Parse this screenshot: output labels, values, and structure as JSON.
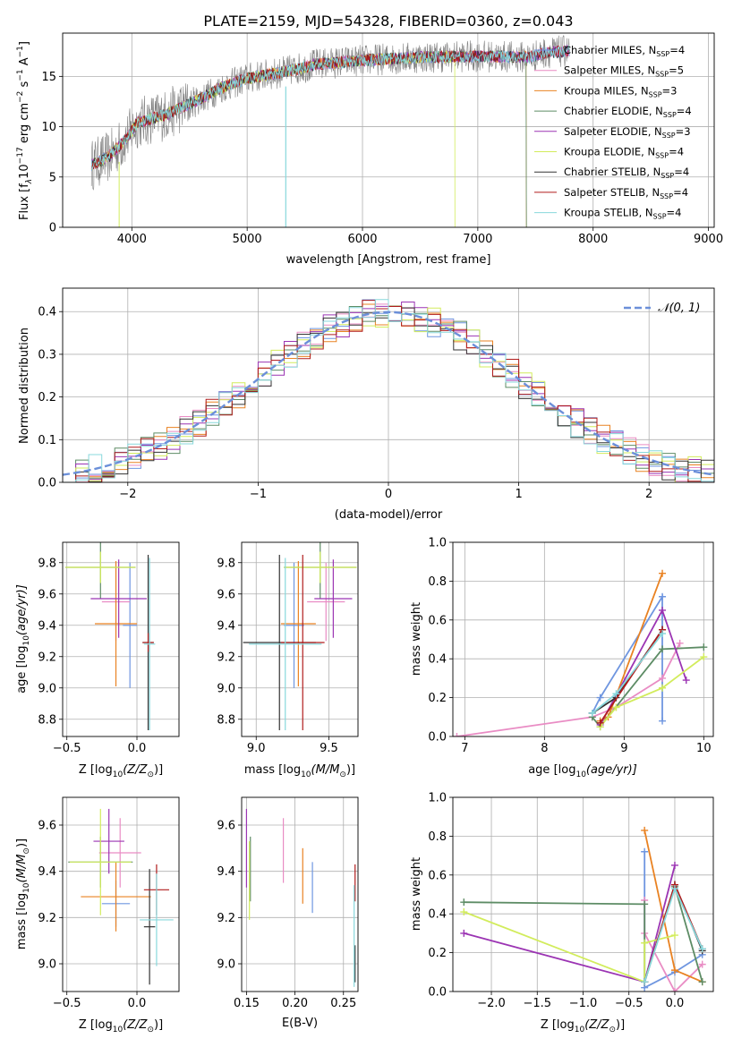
{
  "title": "PLATE=2159, MJD=54328, FIBERID=0360, z=0.043",
  "colors": {
    "chabrier_miles": "#6f96e0",
    "salpeter_miles": "#e98cc4",
    "kroupa_miles": "#e98222",
    "chabrier_elodie": "#5d8c65",
    "salpeter_elodie": "#9b34b3",
    "kroupa_elodie": "#d2ec5c",
    "chabrier_stelib": "#333333",
    "salpeter_stelib": "#b01c1c",
    "kroupa_stelib": "#88d8dc",
    "data": "#808080",
    "normal": "#6b8fd9"
  },
  "chart_data": [
    {
      "id": "spectrum",
      "type": "line",
      "xlabel": "wavelength [Angstrom, rest frame]",
      "ylabel": "Flux [f",
      "ylabel_sub": "λ",
      "ylabel_mid": "10",
      "ylabel_sup1": "−17",
      "ylabel_mid2": " erg cm",
      "ylabel_sup2": "−2",
      "ylabel_mid3": " s",
      "ylabel_sup3": "−1",
      "ylabel_mid4": " A",
      "ylabel_sup4": "−1",
      "ylabel_end": "]",
      "xlim": [
        3400,
        9050
      ],
      "ylim": [
        0,
        19.3
      ],
      "xticks": [
        4000,
        5000,
        6000,
        7000,
        8000,
        9000
      ],
      "yticks": [
        0,
        5,
        10,
        15
      ],
      "continuum": [
        [
          3650,
          6.2
        ],
        [
          3800,
          7.0
        ],
        [
          3950,
          8.8
        ],
        [
          4050,
          10.4
        ],
        [
          4300,
          11.2
        ],
        [
          4600,
          12.8
        ],
        [
          4800,
          14.0
        ],
        [
          5000,
          14.8
        ],
        [
          5300,
          15.4
        ],
        [
          5600,
          16.2
        ],
        [
          6000,
          16.6
        ],
        [
          6500,
          16.9
        ],
        [
          7000,
          17.0
        ],
        [
          7450,
          16.9
        ],
        [
          7600,
          17.4
        ],
        [
          7800,
          17.5
        ]
      ],
      "legend": [
        {
          "label": "Chabrier MILES, N",
          "sub": "SSP",
          "tail": "=4",
          "color_key": "chabrier_miles"
        },
        {
          "label": "Salpeter MILES, N",
          "sub": "SSP",
          "tail": "=5",
          "color_key": "salpeter_miles"
        },
        {
          "label": "Kroupa MILES, N",
          "sub": "SSP",
          "tail": "=3",
          "color_key": "kroupa_miles"
        },
        {
          "label": "Chabrier ELODIE, N",
          "sub": "SSP",
          "tail": "=4",
          "color_key": "chabrier_elodie"
        },
        {
          "label": "Salpeter ELODIE, N",
          "sub": "SSP",
          "tail": "=3",
          "color_key": "salpeter_elodie"
        },
        {
          "label": "Kroupa ELODIE, N",
          "sub": "SSP",
          "tail": "=4",
          "color_key": "kroupa_elodie"
        },
        {
          "label": "Chabrier STELIB, N",
          "sub": "SSP",
          "tail": "=4",
          "color_key": "chabrier_stelib"
        },
        {
          "label": "Salpeter STELIB, N",
          "sub": "SSP",
          "tail": "=4",
          "color_key": "salpeter_stelib"
        },
        {
          "label": "Kroupa STELIB, N",
          "sub": "SSP",
          "tail": "=4",
          "color_key": "kroupa_stelib"
        }
      ]
    },
    {
      "id": "residuals",
      "type": "step",
      "xlabel": "(data-model)/error",
      "ylabel": "Normed distribution",
      "xlim": [
        -2.5,
        2.5
      ],
      "ylim": [
        0,
        0.455
      ],
      "xticks": [
        -2,
        -1,
        0,
        1,
        2
      ],
      "yticks": [
        0.0,
        0.1,
        0.2,
        0.3,
        0.4
      ],
      "legend": "𝒩(0, 1)"
    },
    {
      "id": "age_vs_Z",
      "type": "errorbar",
      "xlabel": "Z [log",
      "xlabel_sub": "10",
      "xlabel_tail": "(Z/Z",
      "xlabel_sun_sub": "⊙",
      "xlabel_end": ")]",
      "ylabel": "age  [log",
      "ylabel_sub": "10",
      "ylabel_tail": "(age/yr)]",
      "xlim": [
        -0.53,
        0.3
      ],
      "ylim": [
        8.69,
        9.93
      ],
      "xticks": [
        -0.5,
        0.0
      ],
      "yticks": [
        8.8,
        9.0,
        9.2,
        9.4,
        9.6,
        9.8
      ],
      "points": [
        {
          "color_key": "chabrier_miles",
          "x": -0.05,
          "y": 9.4,
          "xerr": 0.05,
          "yerr": 0.4
        },
        {
          "color_key": "salpeter_miles",
          "x": -0.15,
          "y": 9.55,
          "xerr": 0.1,
          "yerr": 0.25
        },
        {
          "color_key": "kroupa_miles",
          "x": -0.15,
          "y": 9.41,
          "xerr": 0.15,
          "yerr": 0.4
        },
        {
          "color_key": "chabrier_elodie",
          "x": -0.26,
          "y": 9.77,
          "xerr": 0.25,
          "yerr": 0.2
        },
        {
          "color_key": "salpeter_elodie",
          "x": -0.13,
          "y": 9.57,
          "xerr": 0.2,
          "yerr": 0.25
        },
        {
          "color_key": "kroupa_elodie",
          "x": -0.26,
          "y": 9.77,
          "xerr": 0.25,
          "yerr": 0.1
        },
        {
          "color_key": "chabrier_stelib",
          "x": 0.08,
          "y": 9.29,
          "xerr": 0.04,
          "yerr": 0.56
        },
        {
          "color_key": "salpeter_stelib",
          "x": 0.08,
          "y": 9.29,
          "xerr": 0.04,
          "yerr": 0.06
        },
        {
          "color_key": "kroupa_stelib",
          "x": 0.09,
          "y": 9.28,
          "xerr": 0.04,
          "yerr": 0.55
        }
      ]
    },
    {
      "id": "age_vs_mass",
      "type": "errorbar",
      "xlabel": "mass [log",
      "xlabel_sub": "10",
      "xlabel_tail": "(M/M",
      "xlabel_sun_sub": "⊙",
      "xlabel_end": ")]",
      "xlim": [
        8.9,
        9.7
      ],
      "ylim": [
        8.69,
        9.93
      ],
      "xticks": [
        9.0,
        9.5
      ],
      "yticks": [
        8.8,
        9.0,
        9.2,
        9.4,
        9.6,
        9.8
      ],
      "points": [
        {
          "color_key": "chabrier_miles",
          "x": 9.26,
          "y": 9.4,
          "xerr": 0.07,
          "yerr": 0.4
        },
        {
          "color_key": "salpeter_miles",
          "x": 9.48,
          "y": 9.55,
          "xerr": 0.13,
          "yerr": 0.25
        },
        {
          "color_key": "kroupa_miles",
          "x": 9.29,
          "y": 9.41,
          "xerr": 0.12,
          "yerr": 0.4
        },
        {
          "color_key": "chabrier_elodie",
          "x": 9.44,
          "y": 9.77,
          "xerr": 0.25,
          "yerr": 0.2
        },
        {
          "color_key": "salpeter_elodie",
          "x": 9.53,
          "y": 9.57,
          "xerr": 0.13,
          "yerr": 0.25
        },
        {
          "color_key": "kroupa_elodie",
          "x": 9.44,
          "y": 9.77,
          "xerr": 0.25,
          "yerr": 0.1
        },
        {
          "color_key": "chabrier_stelib",
          "x": 9.16,
          "y": 9.29,
          "xerr": 0.25,
          "yerr": 0.56
        },
        {
          "color_key": "salpeter_stelib",
          "x": 9.32,
          "y": 9.29,
          "xerr": 0.15,
          "yerr": 0.56
        },
        {
          "color_key": "kroupa_stelib",
          "x": 9.2,
          "y": 9.28,
          "xerr": 0.25,
          "yerr": 0.55
        }
      ]
    },
    {
      "id": "weight_vs_age",
      "type": "line",
      "xlabel": "age  [log",
      "xlabel_sub": "10",
      "xlabel_tail": "(age/yr)]",
      "ylabel": "mass weight",
      "xlim": [
        6.85,
        10.12
      ],
      "ylim": [
        0,
        1.0
      ],
      "xticks": [
        7,
        8,
        9,
        10
      ],
      "yticks": [
        0.0,
        0.2,
        0.4,
        0.6,
        0.8,
        1.0
      ],
      "series": [
        {
          "color_key": "chabrier_miles",
          "x": [
            8.6,
            8.7,
            9.48,
            9.48
          ],
          "y": [
            0.12,
            0.2,
            0.72,
            0.08
          ]
        },
        {
          "color_key": "salpeter_miles",
          "x": [
            6.9,
            8.6,
            8.9,
            9.48,
            9.7
          ],
          "y": [
            0.0,
            0.1,
            0.15,
            0.3,
            0.48
          ]
        },
        {
          "color_key": "kroupa_miles",
          "x": [
            8.7,
            8.8,
            9.48
          ],
          "y": [
            0.08,
            0.1,
            0.84
          ]
        },
        {
          "color_key": "chabrier_elodie",
          "x": [
            8.6,
            8.7,
            9.48,
            10.0
          ],
          "y": [
            0.1,
            0.05,
            0.45,
            0.46
          ]
        },
        {
          "color_key": "salpeter_elodie",
          "x": [
            8.7,
            9.48,
            9.78
          ],
          "y": [
            0.06,
            0.65,
            0.29
          ]
        },
        {
          "color_key": "kroupa_elodie",
          "x": [
            8.7,
            8.9,
            9.48,
            10.0
          ],
          "y": [
            0.05,
            0.15,
            0.25,
            0.41
          ]
        },
        {
          "color_key": "chabrier_stelib",
          "x": [
            8.6,
            8.9,
            9.48
          ],
          "y": [
            0.12,
            0.2,
            0.55
          ]
        },
        {
          "color_key": "salpeter_stelib",
          "x": [
            8.7,
            9.48
          ],
          "y": [
            0.07,
            0.55
          ]
        },
        {
          "color_key": "kroupa_stelib",
          "x": [
            8.6,
            8.9,
            9.48
          ],
          "y": [
            0.12,
            0.22,
            0.53
          ]
        }
      ]
    },
    {
      "id": "mass_vs_Z",
      "type": "errorbar",
      "xlabel": "Z [log",
      "xlabel_sub": "10",
      "xlabel_tail": "(Z/Z",
      "xlabel_sun_sub": "⊙",
      "xlabel_end": ")]",
      "ylabel": "mass [log",
      "ylabel_sub": "10",
      "ylabel_tail": "(M/M",
      "ylabel_sun_sub": "⊙",
      "ylabel_end": ")]",
      "xlim": [
        -0.53,
        0.3
      ],
      "ylim": [
        8.88,
        9.72
      ],
      "xticks": [
        -0.5,
        0.0
      ],
      "yticks": [
        9.0,
        9.2,
        9.4,
        9.6
      ],
      "points": [
        {
          "color_key": "chabrier_miles",
          "x": -0.15,
          "y": 9.26,
          "xerr": 0.1,
          "yerr": 0.1
        },
        {
          "color_key": "salpeter_miles",
          "x": -0.12,
          "y": 9.48,
          "xerr": 0.15,
          "yerr": 0.15
        },
        {
          "color_key": "kroupa_miles",
          "x": -0.15,
          "y": 9.29,
          "xerr": 0.25,
          "yerr": 0.15
        },
        {
          "color_key": "chabrier_elodie",
          "x": -0.26,
          "y": 9.44,
          "xerr": 0.23,
          "yerr": 0.11
        },
        {
          "color_key": "salpeter_elodie",
          "x": -0.2,
          "y": 9.53,
          "xerr": 0.11,
          "yerr": 0.14
        },
        {
          "color_key": "kroupa_elodie",
          "x": -0.26,
          "y": 9.44,
          "xerr": 0.22,
          "yerr": 0.23
        },
        {
          "color_key": "chabrier_stelib",
          "x": 0.09,
          "y": 9.16,
          "xerr": 0.04,
          "yerr": 0.25
        },
        {
          "color_key": "salpeter_stelib",
          "x": 0.14,
          "y": 9.32,
          "xerr": 0.09,
          "yerr": 0.11
        },
        {
          "color_key": "kroupa_stelib",
          "x": 0.14,
          "y": 9.19,
          "xerr": 0.12,
          "yerr": 0.2
        }
      ]
    },
    {
      "id": "mass_vs_ebv",
      "type": "errorbar",
      "xlabel": "E(B-V)",
      "xlim": [
        0.145,
        0.265
      ],
      "ylim": [
        8.88,
        9.72
      ],
      "xticks": [
        0.15,
        0.2,
        0.25
      ],
      "yticks": [
        9.0,
        9.2,
        9.4,
        9.6
      ],
      "points": [
        {
          "color_key": "chabrier_miles",
          "x": 0.218,
          "y": 9.33,
          "xerr": 0,
          "yerr": 0.11
        },
        {
          "color_key": "salpeter_miles",
          "x": 0.188,
          "y": 9.49,
          "xerr": 0,
          "yerr": 0.14
        },
        {
          "color_key": "kroupa_miles",
          "x": 0.208,
          "y": 9.38,
          "xerr": 0,
          "yerr": 0.12
        },
        {
          "color_key": "chabrier_elodie",
          "x": 0.154,
          "y": 9.41,
          "xerr": 0,
          "yerr": 0.14
        },
        {
          "color_key": "salpeter_elodie",
          "x": 0.15,
          "y": 9.5,
          "xerr": 0,
          "yerr": 0.17
        },
        {
          "color_key": "kroupa_elodie",
          "x": 0.153,
          "y": 9.36,
          "xerr": 0,
          "yerr": 0.17
        },
        {
          "color_key": "chabrier_stelib",
          "x": 0.262,
          "y": 9.0,
          "xerr": 0,
          "yerr": 0.08
        },
        {
          "color_key": "salpeter_stelib",
          "x": 0.262,
          "y": 9.35,
          "xerr": 0,
          "yerr": 0.08
        },
        {
          "color_key": "kroupa_stelib",
          "x": 0.261,
          "y": 9.12,
          "xerr": 0,
          "yerr": 0.22
        }
      ]
    },
    {
      "id": "weight_vs_Z",
      "type": "line",
      "xlabel": "Z [log",
      "xlabel_sub": "10",
      "xlabel_tail": "(Z/Z",
      "xlabel_sun_sub": "⊙",
      "xlabel_end": ")]",
      "ylabel": "mass weight",
      "xlim": [
        -2.42,
        0.42
      ],
      "ylim": [
        0,
        1.0
      ],
      "xticks": [
        -2.0,
        -1.5,
        -1.0,
        -0.5,
        0.0
      ],
      "yticks": [
        0.0,
        0.2,
        0.4,
        0.6,
        0.8,
        1.0
      ],
      "series": [
        {
          "color_key": "chabrier_miles",
          "x": [
            -0.33,
            -0.33,
            0.0,
            0.3
          ],
          "y": [
            0.72,
            0.02,
            0.1,
            0.19
          ]
        },
        {
          "color_key": "salpeter_miles",
          "x": [
            -0.33,
            -0.33,
            0.0,
            0.3
          ],
          "y": [
            0.47,
            0.3,
            0.0,
            0.14
          ]
        },
        {
          "color_key": "kroupa_miles",
          "x": [
            -0.33,
            0.0,
            0.3
          ],
          "y": [
            0.83,
            0.11,
            0.05
          ]
        },
        {
          "color_key": "chabrier_elodie",
          "x": [
            -2.3,
            -0.33,
            -0.33,
            0.0,
            0.3
          ],
          "y": [
            0.46,
            0.45,
            0.05,
            0.54,
            0.05
          ]
        },
        {
          "color_key": "salpeter_elodie",
          "x": [
            -2.3,
            -0.33,
            0.0
          ],
          "y": [
            0.3,
            0.05,
            0.65
          ]
        },
        {
          "color_key": "kroupa_elodie",
          "x": [
            -2.3,
            -0.33,
            -0.33,
            0.0
          ],
          "y": [
            0.41,
            0.05,
            0.25,
            0.29
          ]
        },
        {
          "color_key": "chabrier_stelib",
          "x": [
            -0.33,
            0.0,
            0.3
          ],
          "y": [
            0.05,
            0.55,
            0.21
          ]
        },
        {
          "color_key": "salpeter_stelib",
          "x": [
            -0.33,
            0.0,
            0.3
          ],
          "y": [
            0.05,
            0.55,
            0.22
          ]
        },
        {
          "color_key": "kroupa_stelib",
          "x": [
            -0.33,
            0.0,
            0.3
          ],
          "y": [
            0.05,
            0.53,
            0.22
          ]
        }
      ]
    }
  ]
}
